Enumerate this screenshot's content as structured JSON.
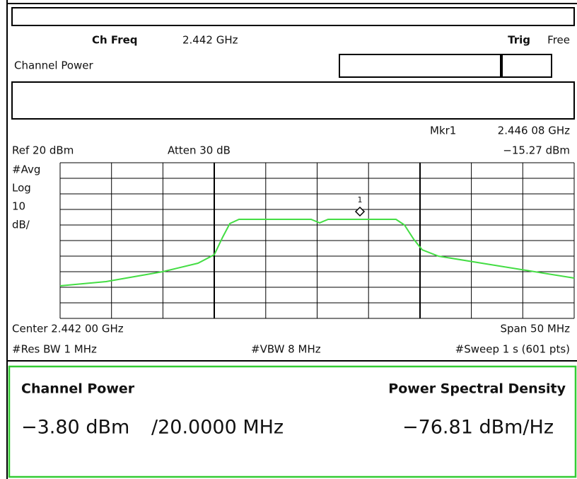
{
  "header": {
    "ch_freq_label": "Ch Freq",
    "ch_freq_value": "2.442 GHz",
    "trig_label": "Trig",
    "trig_value": "Free",
    "mode": "Channel Power"
  },
  "marker": {
    "label": "Mkr1",
    "frequency": "2.446 08 GHz",
    "level": "−15.27 dBm",
    "number": "1"
  },
  "display": {
    "ref": "Ref 20 dBm",
    "atten": "Atten 30 dB",
    "scale": [
      "#Avg",
      "Log",
      "10",
      "dB/"
    ]
  },
  "footer": {
    "center": "Center 2.442 00 GHz",
    "span": "Span 50 MHz",
    "res_bw": "#Res BW 1 MHz",
    "vbw": "#VBW 8 MHz",
    "sweep": "#Sweep 1 s (601 pts)"
  },
  "results": {
    "channel_power_label": "Channel Power",
    "channel_power_value": "−3.80 dBm",
    "bandwidth": "/20.0000 MHz",
    "psd_label": "Power Spectral Density",
    "psd_value": "−76.81 dBm/Hz"
  }
}
